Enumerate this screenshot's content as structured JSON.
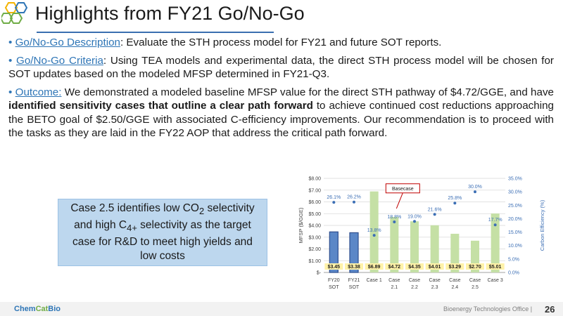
{
  "header": {
    "title": "Highlights from FY21 Go/No-Go"
  },
  "bullets": [
    {
      "label": "Go/No-Go Description",
      "sep": ":",
      "text": " Evaluate the STH process model for FY21 and future SOT reports."
    },
    {
      "label": "Go/No-Go Criteria",
      "sep": ":",
      "text": " Using TEA models and experimental data, the direct STH process model will be chosen for SOT updates based on the modeled MFSP determined in FY21-Q3."
    },
    {
      "label": "Outcome:",
      "sep": "",
      "text_before": " We demonstrated a modeled baseline MFSP value for the direct STH pathway of $4.72/GGE, and have ",
      "bold": "identified sensitivity cases that outline a clear path forward",
      "text_after": " to achieve continued cost reductions approaching the BETO goal of $2.50/GGE with associated C-efficiency improvements. Our recommendation is to proceed with the tasks as they are laid in the FY22 AOP that address the critical path forward."
    }
  ],
  "callout": {
    "line1": "Case 2.5 identifies low CO",
    "sub1": "2",
    "line2": " selectivity and high C",
    "sub2": "4+",
    "line3": " selectivity as the target case for R&D to meet high yields and low costs"
  },
  "chart_data": {
    "type": "bar",
    "categories": [
      [
        "FY20",
        "SOT"
      ],
      [
        "FY21",
        "SOT"
      ],
      [
        "Case 1"
      ],
      [
        "Case",
        "2.1"
      ],
      [
        "Case",
        "2.2"
      ],
      [
        "Case",
        "2.3"
      ],
      [
        "Case",
        "2.4"
      ],
      [
        "Case",
        "2.5"
      ],
      [
        "Case 3"
      ]
    ],
    "series": [
      {
        "type": "bar",
        "values": [
          3.45,
          3.38,
          6.89,
          4.72,
          4.35,
          4.01,
          3.29,
          2.7,
          5.01
        ],
        "labels": [
          "$3.45",
          "$3.38",
          "$6.89",
          "$4.72",
          "$4.35",
          "$4.01",
          "$3.29",
          "$2.70",
          "$5.01"
        ]
      },
      {
        "type": "scatter",
        "axis": "right",
        "values": [
          26.1,
          26.2,
          13.8,
          18.8,
          19.0,
          21.6,
          25.8,
          30.0,
          17.7
        ],
        "labels": [
          "26.1%",
          "26.2%",
          "13.8%",
          "18.8%",
          "19.0%",
          "21.6%",
          "25.8%",
          "30.0%",
          "17.7%"
        ]
      }
    ],
    "ylabel": "MFSP ($/GGE)",
    "ylim": [
      0,
      8
    ],
    "yticks": [
      "$-",
      "$1.00",
      "$2.00",
      "$3.00",
      "$4.00",
      "$5.00",
      "$6.00",
      "$7.00",
      "$8.00"
    ],
    "y2label": "Carbon Efficiency (%)",
    "y2lim": [
      0,
      35
    ],
    "y2ticks": [
      "0.0%",
      "5.0%",
      "10.0%",
      "15.0%",
      "20.0%",
      "25.0%",
      "30.0%",
      "35.0%"
    ],
    "annotation": {
      "text": "Basecase",
      "category_index": 3
    },
    "highlight_indices": [
      0,
      1
    ],
    "grid": true,
    "colors": {
      "bar": "#c5e0a5",
      "bar_highlight": "#5b87c7",
      "bar_highlight_border": "#2f4f8f",
      "point": "#3c6fb5",
      "label_bg": "#fff2a8",
      "pct_text": "#3c6fb5",
      "gridline": "#d9d9d9",
      "annotation_border": "#c00000"
    }
  },
  "footer": {
    "logo_a": "Chem",
    "logo_b": "Cat",
    "logo_c": "Bio",
    "office": "Bioenergy Technologies Office  |",
    "page": "26"
  }
}
